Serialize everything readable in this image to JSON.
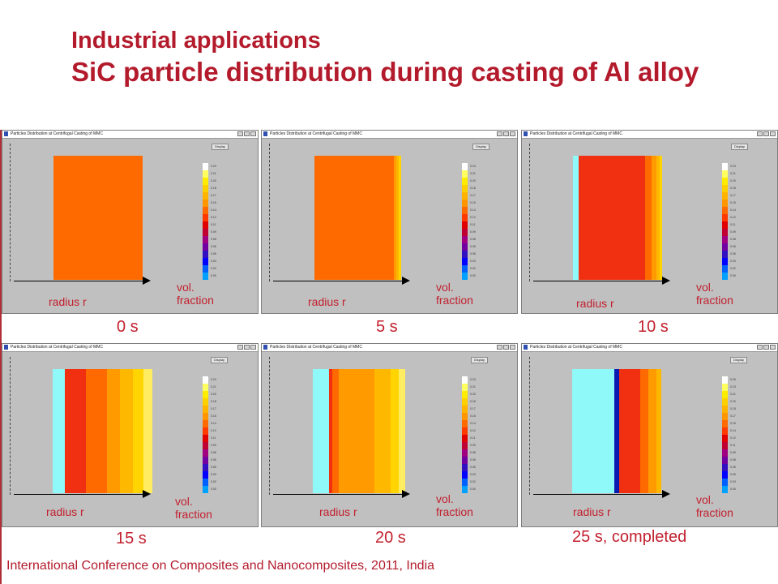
{
  "slide": {
    "title": "Industrial applications",
    "subtitle": "SiC particle distribution during casting of Al alloy",
    "footer": "International Conference on Composites and Nanocomposites, 2011, India"
  },
  "window": {
    "title": "Particles Distribution at Centrifugal Casting of MMC",
    "display_button": "Display"
  },
  "labels": {
    "radius": "radius r",
    "vol": "vol.",
    "fraction": "fraction"
  },
  "colors": {
    "title": "#b31b2c",
    "orange": "#ff6a00",
    "red": "#f03010",
    "orange_light": "#ff9a00",
    "amber": "#ffb800",
    "yellow": "#ffd400",
    "pale_yellow": "#ffec60",
    "cyan": "#8ff8f8",
    "blue": "#0a1ab0"
  },
  "colorbar": {
    "colors": [
      "#ffffff",
      "#ffff60",
      "#ffec00",
      "#ffd000",
      "#ffb400",
      "#ff9600",
      "#ff6a00",
      "#ff3a00",
      "#e00000",
      "#c00030",
      "#a00080",
      "#7000a0",
      "#3010c0",
      "#0000ff",
      "#0060ff",
      "#00a0ff",
      "#00e0ff",
      "#8ff8f8"
    ],
    "ticks_a": [
      "0.23",
      "0.21",
      "0.20",
      "0.18",
      "0.17",
      "0.15",
      "0.14",
      "0.12",
      "0.11",
      "0.09",
      "0.08",
      "0.06",
      "0.05",
      "0.03",
      "0.02",
      "0.00"
    ],
    "ticks_b": [
      "0.25",
      "0.23",
      "0.21",
      "0.20",
      "0.18",
      "0.17",
      "0.15",
      "0.14",
      "0.12",
      "0.11",
      "0.09",
      "0.08",
      "0.06",
      "0.05",
      "0.03",
      "0.00"
    ]
  },
  "panels": [
    {
      "time": "0 s",
      "bands": [
        {
          "w": 110,
          "c": "orange"
        }
      ]
    },
    {
      "time": "5 s",
      "bands": [
        {
          "w": 98,
          "c": "orange"
        },
        {
          "w": 3,
          "c": "orange_light"
        },
        {
          "w": 3,
          "c": "amber"
        },
        {
          "w": 3,
          "c": "yellow"
        }
      ]
    },
    {
      "time": "10 s",
      "bands": [
        {
          "w": 7,
          "c": "cyan"
        },
        {
          "w": 82,
          "c": "red"
        },
        {
          "w": 8,
          "c": "orange"
        },
        {
          "w": 6,
          "c": "orange_light"
        },
        {
          "w": 4,
          "c": "amber"
        },
        {
          "w": 3,
          "c": "yellow"
        }
      ]
    },
    {
      "time": "15 s",
      "bands": [
        {
          "w": 14,
          "c": "cyan"
        },
        {
          "w": 12,
          "c": "red"
        },
        {
          "w": 12,
          "c": "red"
        },
        {
          "w": 12,
          "c": "orange"
        },
        {
          "w": 12,
          "c": "orange"
        },
        {
          "w": 14,
          "c": "orange_light"
        },
        {
          "w": 15,
          "c": "amber"
        },
        {
          "w": 12,
          "c": "yellow"
        },
        {
          "w": 10,
          "c": "pale_yellow"
        }
      ]
    },
    {
      "time": "20 s",
      "bands": [
        {
          "w": 20,
          "c": "cyan"
        },
        {
          "w": 4,
          "c": "red"
        },
        {
          "w": 8,
          "c": "orange"
        },
        {
          "w": 20,
          "c": "orange_light"
        },
        {
          "w": 24,
          "c": "orange_light"
        },
        {
          "w": 20,
          "c": "amber"
        },
        {
          "w": 10,
          "c": "yellow"
        },
        {
          "w": 8,
          "c": "pale_yellow"
        }
      ]
    },
    {
      "time": "25 s, completed",
      "bands": [
        {
          "w": 52,
          "c": "cyan"
        },
        {
          "w": 6,
          "c": "blue"
        },
        {
          "w": 14,
          "c": "red"
        },
        {
          "w": 12,
          "c": "red"
        },
        {
          "w": 10,
          "c": "orange"
        },
        {
          "w": 10,
          "c": "orange_light"
        },
        {
          "w": 6,
          "c": "amber"
        }
      ]
    }
  ]
}
